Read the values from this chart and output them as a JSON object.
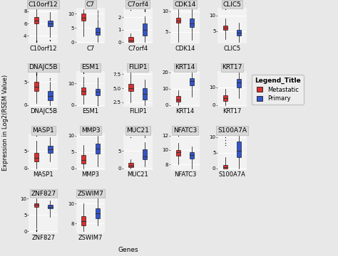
{
  "genes": [
    "C10orf12",
    "C7",
    "C7orf4",
    "CDK14",
    "CLIC5",
    "DNAJC5B",
    "ESM1",
    "FILIP1",
    "KRT14",
    "KRT17",
    "MASP1",
    "MMP3",
    "MUC21",
    "NFATC3",
    "S100A7A",
    "ZNF827",
    "ZSWIM7"
  ],
  "gene_data": {
    "C10orf12": {
      "metastatic": {
        "q1": 6.0,
        "median": 6.5,
        "q3": 7.0,
        "whisker_low": 3.2,
        "whisker_high": 8.3,
        "outliers": [
          3.0,
          3.1,
          3.15,
          3.05,
          3.08,
          3.03,
          3.2,
          3.25
        ]
      },
      "primary": {
        "q1": 5.5,
        "median": 6.0,
        "q3": 6.5,
        "whisker_low": 3.8,
        "whisker_high": 7.8,
        "outliers": [
          3.2,
          3.3,
          3.4
        ]
      }
    },
    "C7": {
      "metastatic": {
        "q1": 7.5,
        "median": 8.5,
        "q3": 10.0,
        "whisker_low": 2.0,
        "whisker_high": 11.5,
        "outliers": []
      },
      "primary": {
        "q1": 2.5,
        "median": 3.5,
        "q3": 5.0,
        "whisker_low": 0.0,
        "whisker_high": 8.0,
        "outliers": [
          8.5,
          9.0,
          9.5,
          10.0,
          10.5,
          11.0
        ]
      }
    },
    "C7orf4": {
      "metastatic": {
        "q1": 0.0,
        "median": 0.1,
        "q3": 0.4,
        "whisker_low": 0.0,
        "whisker_high": 0.7,
        "outliers": [
          2.6
        ]
      },
      "primary": {
        "q1": 0.5,
        "median": 1.0,
        "q3": 1.5,
        "whisker_low": 0.0,
        "whisker_high": 2.1,
        "outliers": [
          2.5,
          2.55,
          2.6,
          2.65
        ]
      }
    },
    "CDK14": {
      "metastatic": {
        "q1": 7.2,
        "median": 7.8,
        "q3": 8.5,
        "whisker_low": 2.5,
        "whisker_high": 10.5,
        "outliers": []
      },
      "primary": {
        "q1": 6.2,
        "median": 7.0,
        "q3": 8.2,
        "whisker_low": 3.0,
        "whisker_high": 10.5,
        "outliers": []
      }
    },
    "CLIC5": {
      "metastatic": {
        "q1": 5.5,
        "median": 6.0,
        "q3": 6.8,
        "whisker_low": 2.5,
        "whisker_high": 9.0,
        "outliers": [
          12.0
        ]
      },
      "primary": {
        "q1": 3.5,
        "median": 4.5,
        "q3": 5.5,
        "whisker_low": 1.5,
        "whisker_high": 7.8,
        "outliers": []
      }
    },
    "DNAJC5B": {
      "metastatic": {
        "q1": 3.0,
        "median": 4.0,
        "q3": 5.0,
        "whisker_low": 0.5,
        "whisker_high": 6.5,
        "outliers": [
          6.8,
          7.0,
          6.9,
          7.1,
          6.7,
          6.6,
          6.5
        ]
      },
      "primary": {
        "q1": 1.0,
        "median": 2.0,
        "q3": 3.0,
        "whisker_low": 0.0,
        "whisker_high": 5.0,
        "outliers": [
          5.5,
          5.8
        ]
      }
    },
    "ESM1": {
      "metastatic": {
        "q1": 5.0,
        "median": 6.5,
        "q3": 8.0,
        "whisker_low": 0.5,
        "whisker_high": 13.0,
        "outliers": [
          14.5,
          15.0
        ]
      },
      "primary": {
        "q1": 4.5,
        "median": 6.0,
        "q3": 7.5,
        "whisker_low": 0.0,
        "whisker_high": 12.5,
        "outliers": [
          0.0
        ]
      }
    },
    "FILIP1": {
      "metastatic": {
        "q1": 4.5,
        "median": 5.0,
        "q3": 5.8,
        "whisker_low": 2.5,
        "whisker_high": 7.8,
        "outliers": []
      },
      "primary": {
        "q1": 3.0,
        "median": 4.0,
        "q3": 5.0,
        "whisker_low": 2.0,
        "whisker_high": 6.5,
        "outliers": []
      }
    },
    "KRT14": {
      "metastatic": {
        "q1": 2.0,
        "median": 3.5,
        "q3": 5.5,
        "whisker_low": 0.0,
        "whisker_high": 9.0,
        "outliers": []
      },
      "primary": {
        "q1": 12.0,
        "median": 14.5,
        "q3": 16.5,
        "whisker_low": 5.0,
        "whisker_high": 20.0,
        "outliers": []
      }
    },
    "KRT17": {
      "metastatic": {
        "q1": 2.5,
        "median": 4.0,
        "q3": 5.5,
        "whisker_low": 0.0,
        "whisker_high": 9.0,
        "outliers": []
      },
      "primary": {
        "q1": 10.0,
        "median": 13.0,
        "q3": 15.0,
        "whisker_low": 4.0,
        "whisker_high": 18.5,
        "outliers": []
      }
    },
    "MASP1": {
      "metastatic": {
        "q1": 2.0,
        "median": 3.0,
        "q3": 4.5,
        "whisker_low": 0.0,
        "whisker_high": 8.0,
        "outliers": [
          9.5
        ]
      },
      "primary": {
        "q1": 4.5,
        "median": 5.5,
        "q3": 6.5,
        "whisker_low": 2.0,
        "whisker_high": 9.0,
        "outliers": []
      }
    },
    "MMP3": {
      "metastatic": {
        "q1": 1.5,
        "median": 2.5,
        "q3": 4.0,
        "whisker_low": 0.0,
        "whisker_high": 7.0,
        "outliers": []
      },
      "primary": {
        "q1": 4.5,
        "median": 6.0,
        "q3": 7.5,
        "whisker_low": 0.5,
        "whisker_high": 10.0,
        "outliers": []
      }
    },
    "MUC21": {
      "metastatic": {
        "q1": 0.3,
        "median": 0.8,
        "q3": 1.5,
        "whisker_low": 0.0,
        "whisker_high": 2.5,
        "outliers": [
          9.0
        ]
      },
      "primary": {
        "q1": 2.5,
        "median": 3.5,
        "q3": 5.5,
        "whisker_low": 0.5,
        "whisker_high": 7.5,
        "outliers": [
          9.0,
          9.5
        ]
      }
    },
    "NFATC3": {
      "metastatic": {
        "q1": 9.2,
        "median": 9.7,
        "q3": 10.0,
        "whisker_low": 8.0,
        "whisker_high": 11.0,
        "outliers": [
          12.0
        ]
      },
      "primary": {
        "q1": 8.8,
        "median": 9.3,
        "q3": 9.7,
        "whisker_low": 7.5,
        "whisker_high": 10.5,
        "outliers": []
      }
    },
    "S100A7A": {
      "metastatic": {
        "q1": 0.0,
        "median": 0.3,
        "q3": 1.0,
        "whisker_low": 0.0,
        "whisker_high": 3.5,
        "outliers": [
          7.5,
          8.0,
          9.0,
          10.0
        ]
      },
      "primary": {
        "q1": 3.5,
        "median": 5.5,
        "q3": 8.5,
        "whisker_low": 0.0,
        "whisker_high": 10.5,
        "outliers": []
      }
    },
    "ZNF827": {
      "metastatic": {
        "q1": 7.5,
        "median": 8.0,
        "q3": 8.5,
        "whisker_low": 1.0,
        "whisker_high": 10.0,
        "outliers": [
          0.0,
          0.1,
          0.2,
          0.3,
          0.5,
          0.6
        ]
      },
      "primary": {
        "q1": 7.0,
        "median": 7.5,
        "q3": 8.0,
        "whisker_low": 4.5,
        "whisker_high": 9.5,
        "outliers": []
      }
    },
    "ZSWIM7": {
      "metastatic": {
        "q1": 7.8,
        "median": 8.2,
        "q3": 8.7,
        "whisker_low": 7.2,
        "whisker_high": 10.0,
        "outliers": []
      },
      "primary": {
        "q1": 8.5,
        "median": 9.0,
        "q3": 9.5,
        "whisker_low": 7.8,
        "whisker_high": 10.5,
        "outliers": []
      }
    }
  },
  "color_metastatic": "#D93030",
  "color_primary": "#3355CC",
  "background_color": "#E8E8E8",
  "panel_bg": "#F2F2F2",
  "grid_color": "#FFFFFF",
  "ylabel": "Expression in Log2(RSEM Value)",
  "xlabel": "Genes",
  "legend_title": "Legend_Title",
  "legend_labels": [
    "Metastatic",
    "Primary"
  ],
  "title_fontsize": 6.5,
  "label_fontsize": 6,
  "axis_fontsize": 5,
  "box_width": 0.32
}
